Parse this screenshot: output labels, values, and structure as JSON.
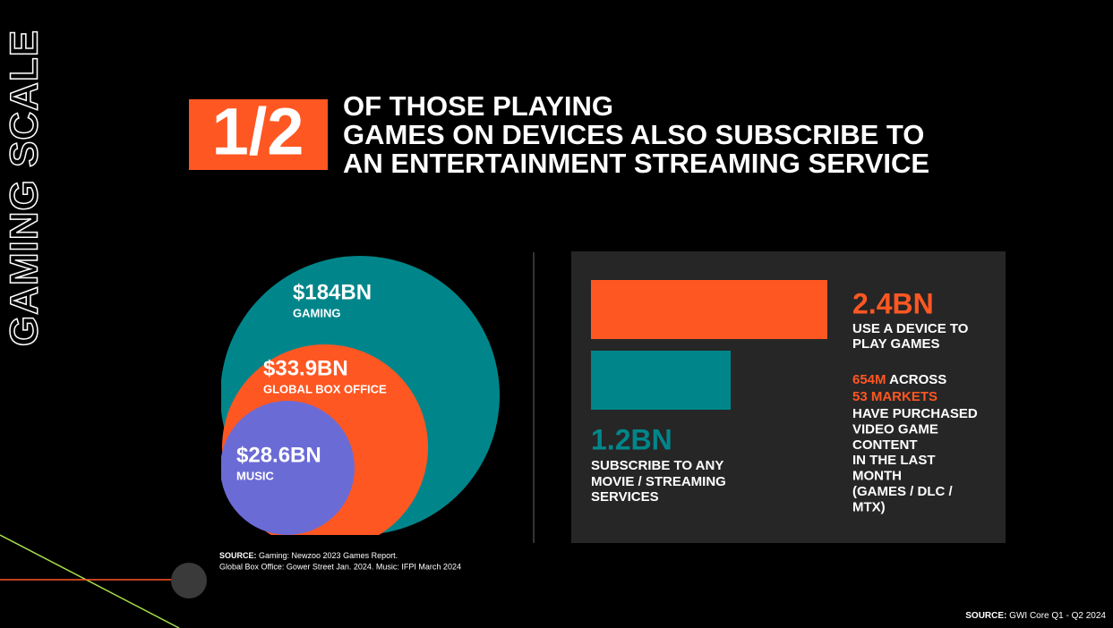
{
  "side_title": "GAMING SCALE",
  "headline": {
    "fraction": "1/2",
    "lines": [
      "OF THOSE PLAYING",
      "GAMES ON DEVICES ALSO SUBSCRIBE TO",
      "AN ENTERTAINMENT STREAMING SERVICE"
    ]
  },
  "circles": [
    {
      "value": "$184BN",
      "label": "GAMING"
    },
    {
      "value": "$33.9BN",
      "label": "GLOBAL BOX OFFICE"
    },
    {
      "value": "$28.6BN",
      "label": "MUSIC"
    }
  ],
  "circles_source": {
    "label": "SOURCE:",
    "lines": [
      " Gaming: Newzoo 2023 Games Report.",
      "Global Box Office: Gower Street Jan. 2024. Music: IFPI March 2024"
    ]
  },
  "stats": {
    "devices": {
      "value": "2.4BN",
      "lines": [
        "USE A DEVICE TO",
        "PLAY GAMES"
      ]
    },
    "purchases": {
      "highlight": "654M",
      "text": " ACROSS",
      "markets": "53 MARKETS",
      "lines": [
        "HAVE PURCHASED",
        "VIDEO GAME",
        "CONTENT",
        "IN THE LAST",
        "MONTH",
        "(GAMES / DLC /",
        "MTX)"
      ]
    },
    "streaming": {
      "value": "1.2BN",
      "lines": [
        "SUBSCRIBE TO ANY",
        "MOVIE / STREAMING",
        "SERVICES"
      ]
    }
  },
  "footer_source": {
    "label": "SOURCE:",
    "text": " GWI Core Q1 - Q2 2024"
  }
}
